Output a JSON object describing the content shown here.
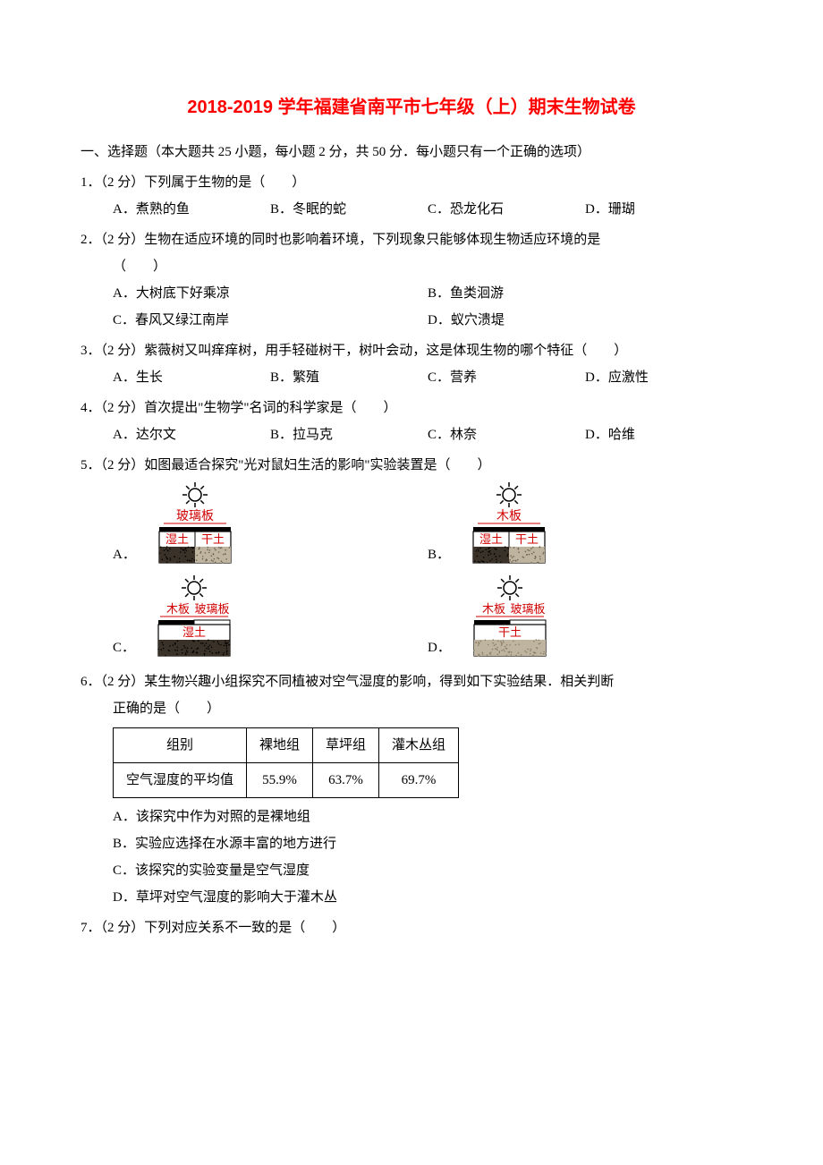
{
  "title": "2018-2019 学年福建省南平市七年级（上）期末生物试卷",
  "section1": "一、选择题（本大题共 25 小题，每小题 2 分，共 50 分．每小题只有一个正确的选项）",
  "q1": {
    "stem": "1．（2 分）下列属于生物的是（　　）",
    "A": "A．煮熟的鱼",
    "B": "B．冬眠的蛇",
    "C": "C．恐龙化石",
    "D": "D．珊瑚"
  },
  "q2": {
    "stem1": "2．（2 分）生物在适应环境的同时也影响着环境，下列现象只能够体现生物适应环境的是",
    "stem2": "（　　）",
    "A": "A．大树底下好乘凉",
    "B": "B．鱼类洄游",
    "C": "C．春风又绿江南岸",
    "D": "D．蚁穴溃堤"
  },
  "q3": {
    "stem": "3．（2 分）紫薇树又叫痒痒树，用手轻碰树干，树叶会动，这是体现生物的哪个特征（　　）",
    "A": "A．生长",
    "B": "B．繁殖",
    "C": "C．营养",
    "D": "D．应激性"
  },
  "q4": {
    "stem": "4．（2 分）首次提出\"生物学\"名词的科学家是（　　）",
    "A": "A．达尔文",
    "B": "B．拉马克",
    "C": "C．林奈",
    "D": "D．哈维"
  },
  "q5": {
    "stem": "5．（2 分）如图最适合探究\"光对鼠妇生活的影响\"实验装置是（　　）",
    "A": "A．",
    "B": "B．",
    "C": "C．",
    "D": "D．",
    "diagA": {
      "board": "玻璃板",
      "left": "湿土",
      "right": "干土",
      "soil": "mixed"
    },
    "diagB": {
      "board": "木板",
      "left": "湿土",
      "right": "干土",
      "soil": "mixed"
    },
    "diagC": {
      "boardL": "木板",
      "boardR": "玻璃板",
      "soilLabel": "湿土",
      "soil": "wet"
    },
    "diagD": {
      "boardL": "木板",
      "boardR": "玻璃板",
      "soilLabel": "干土",
      "soil": "dry"
    },
    "colors": {
      "red": "#d00000",
      "black": "#000000",
      "soilDark": "#3a3228",
      "soilLight": "#bfb49f"
    }
  },
  "q6": {
    "stem1": "6．（2 分）某生物兴趣小组探究不同植被对空气湿度的影响，得到如下实验结果．相关判断",
    "stem2": "正确的是（　　）",
    "table": {
      "headers": [
        "组别",
        "裸地组",
        "草坪组",
        "灌木丛组"
      ],
      "row1": [
        "空气湿度的平均值",
        "55.9%",
        "63.7%",
        "69.7%"
      ]
    },
    "A": "A．该探究中作为对照的是裸地组",
    "B": "B．实验应选择在水源丰富的地方进行",
    "C": "C．该探究的实验变量是空气湿度",
    "D": "D．草坪对空气湿度的影响大于灌木丛"
  },
  "q7": {
    "stem": "7．（2 分）下列对应关系不一致的是（　　）"
  }
}
